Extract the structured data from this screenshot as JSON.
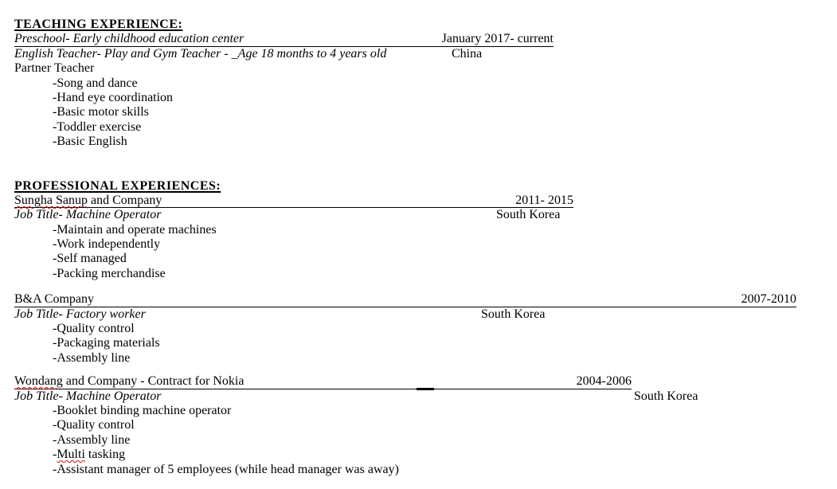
{
  "colors": {
    "page_background": "#ffffff",
    "text": "#000000",
    "rule_lines": "#000000",
    "spellcheck_underline": "#cc1111"
  },
  "teaching": {
    "heading": "TEACHING EXPERIENCE:",
    "position": {
      "name": "Preschool- Early childhood education center",
      "dates": "January 2017- current"
    },
    "role": {
      "description": "English Teacher- Play and Gym Teacher - _Age 18 months to 4 years old",
      "location": "China"
    },
    "extra_line": "Partner Teacher",
    "bullets": [
      "-Song and dance",
      "-Hand eye coordination",
      "-Basic motor skills",
      "-Toddler exercise",
      "-Basic English"
    ]
  },
  "professional": {
    "heading": "PROFESSIONAL EXPERIENCES:",
    "jobs": [
      {
        "company_flagged": "Sungha Sanup",
        "company_rest": " and Company",
        "dates": "2011- 2015",
        "job_title": "Job Title- Machine Operator",
        "location": "South Korea",
        "bullets": [
          "-Maintain and operate machines",
          "-Work independently",
          "-Self managed",
          "-Packing merchandise"
        ]
      },
      {
        "company": "B&A Company",
        "dates": "2007-2010",
        "job_title": "Job Title- Factory worker",
        "location": "South Korea",
        "bullets": [
          "-Quality control",
          "-Packaging materials",
          "-Assembly line"
        ]
      },
      {
        "company_flagged": "Wondang",
        "company_rest": " and Company - Contract for Nokia",
        "underscore_mark": "_",
        "dates": "2004-2006",
        "job_title": "Job Title- Machine Operator",
        "location": "South Korea",
        "bullets": [
          "-Booklet binding machine operator",
          "-Quality control",
          "-Assembly line"
        ],
        "bullet_flagged": {
          "prefix": "-",
          "word": "Multi",
          "rest": " tasking"
        },
        "bullet_last": "-Assistant manager of 5 employees (while head manager was away)"
      }
    ]
  }
}
